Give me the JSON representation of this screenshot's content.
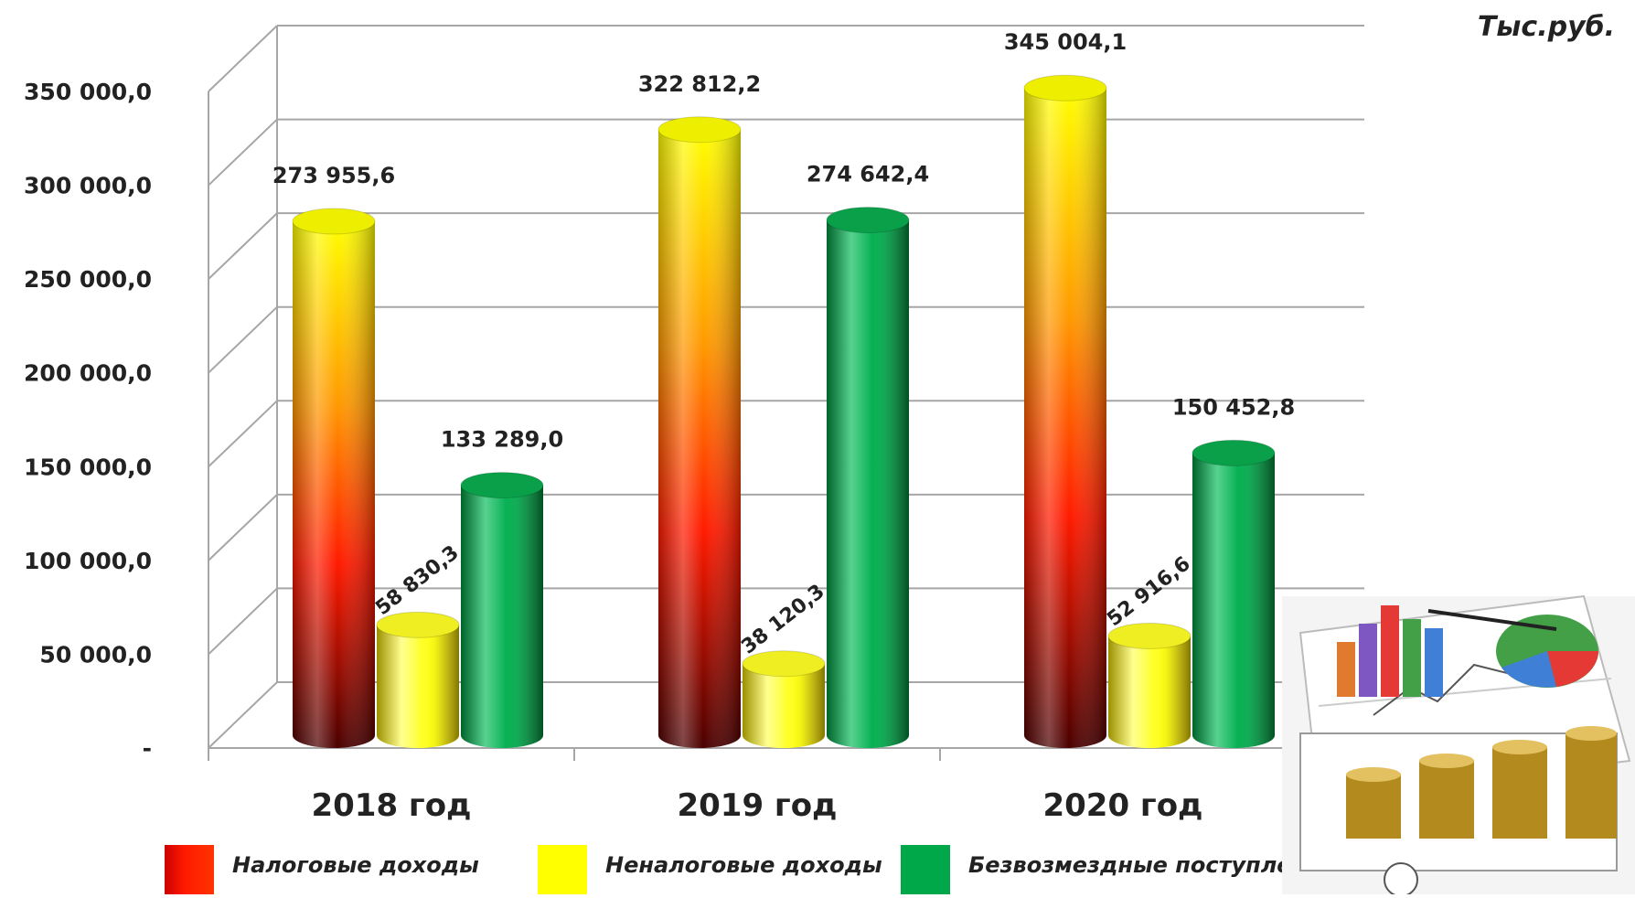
{
  "unit_label": "Тыс.руб.",
  "colors": {
    "tax": "#ff1a00",
    "nontax": "#ffff00",
    "grants": "#00a84a",
    "grid": "#a6a6a6"
  },
  "chart_data": {
    "type": "bar",
    "style": "3d-cylinder",
    "categories": [
      "2018 год",
      "2019 год",
      "2020 год"
    ],
    "series": [
      {
        "name": "Налоговые доходы",
        "values": [
          273955.6,
          322812.2,
          345004.1
        ],
        "labels": [
          "273 955,6",
          "322 812,2",
          "345 004,1"
        ]
      },
      {
        "name": "Неналоговые доходы",
        "values": [
          58830.3,
          38120.3,
          52916.6
        ],
        "labels": [
          "58 830,3",
          "38 120,3",
          "52 916,6"
        ]
      },
      {
        "name": "Безвозмездные  поступления",
        "values": [
          133289.0,
          274642.4,
          150452.8
        ],
        "labels": [
          "133 289,0",
          "274 642,4",
          "150 452,8"
        ]
      }
    ],
    "yticks": [
      "-",
      "50 000,0",
      "100 000,0",
      "150 000,0",
      "200 000,0",
      "250 000,0",
      "300 000,0",
      "350 000,0"
    ],
    "ylim": [
      0,
      350000
    ],
    "ystep": 50000,
    "grid": true,
    "legend_position": "bottom",
    "xlabel": "",
    "ylabel": ""
  },
  "clipart_icon": "finance-charts-coins-icon"
}
